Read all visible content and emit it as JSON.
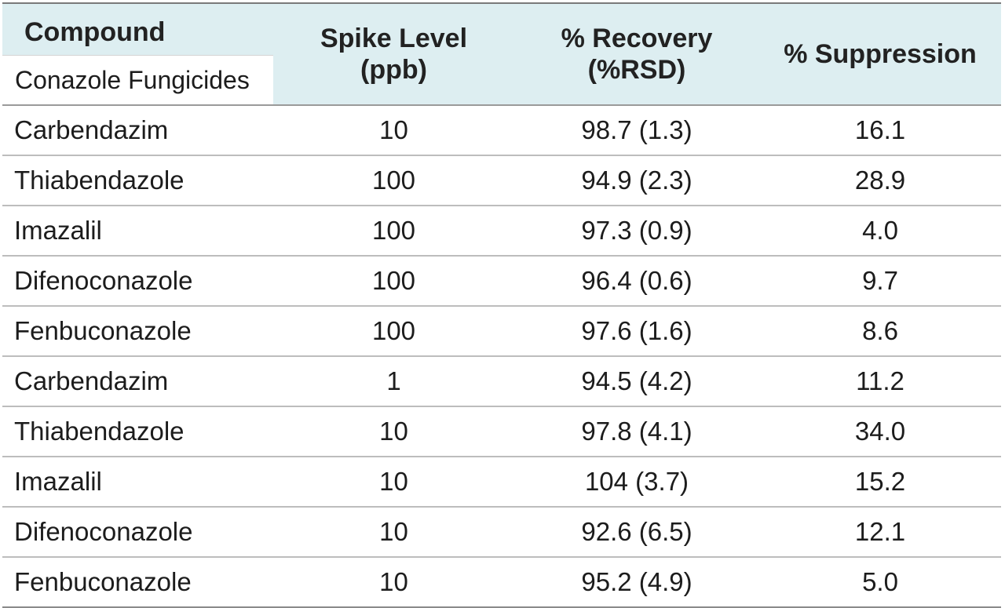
{
  "table": {
    "headers": {
      "compound": "Compound",
      "compound_group": "Conazole Fungicides",
      "spike_level_line1": "Spike Level",
      "spike_level_line2": "(ppb)",
      "recovery_line1": "% Recovery",
      "recovery_line2": "(%RSD)",
      "suppression": "% Suppression"
    },
    "rows": [
      {
        "compound": "Carbendazim",
        "spike": "10",
        "recovery": "98.7 (1.3)",
        "suppression": "16.1"
      },
      {
        "compound": "Thiabendazole",
        "spike": "100",
        "recovery": "94.9 (2.3)",
        "suppression": "28.9"
      },
      {
        "compound": "Imazalil",
        "spike": "100",
        "recovery": "97.3 (0.9)",
        "suppression": "4.0"
      },
      {
        "compound": "Difenoconazole",
        "spike": "100",
        "recovery": "96.4 (0.6)",
        "suppression": "9.7"
      },
      {
        "compound": "Fenbuconazole",
        "spike": "100",
        "recovery": "97.6 (1.6)",
        "suppression": "8.6"
      },
      {
        "compound": "Carbendazim",
        "spike": "1",
        "recovery": "94.5 (4.2)",
        "suppression": "11.2"
      },
      {
        "compound": "Thiabendazole",
        "spike": "10",
        "recovery": "97.8 (4.1)",
        "suppression": "34.0"
      },
      {
        "compound": "Imazalil",
        "spike": "10",
        "recovery": "104 (3.7)",
        "suppression": "15.2"
      },
      {
        "compound": "Difenoconazole",
        "spike": "10",
        "recovery": "92.6 (6.5)",
        "suppression": "12.1"
      },
      {
        "compound": "Fenbuconazole",
        "spike": "10",
        "recovery": "95.2 (4.9)",
        "suppression": "5.0"
      }
    ]
  },
  "colors": {
    "header_background": "#ddeef1",
    "rule_color": "#bdbdbd",
    "text_color": "#1c1c1c"
  }
}
